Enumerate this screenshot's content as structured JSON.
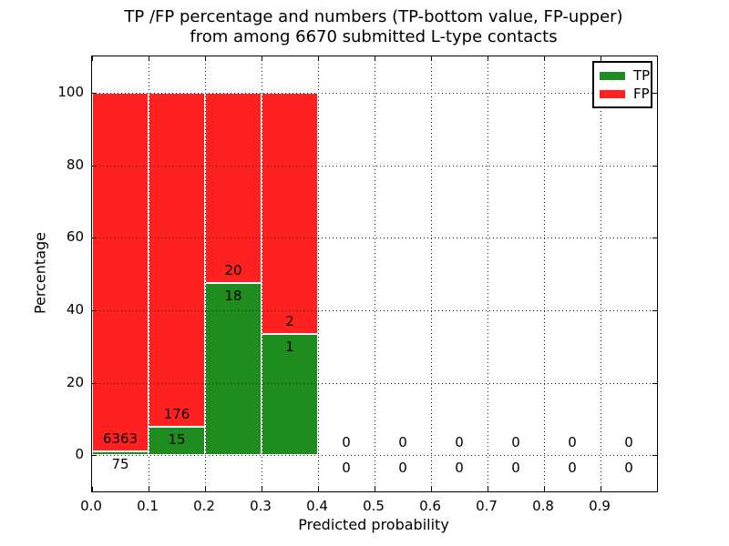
{
  "chart": {
    "title_line1": "TP /FP percentage and numbers (TP-bottom value, FP-upper)",
    "title_line2": "from among 6670 submitted L-type contacts",
    "xlabel": "Predicted probability",
    "ylabel": "Percentage"
  },
  "chart_data": {
    "type": "bar",
    "stacked": true,
    "title": "TP /FP percentage and numbers (TP-bottom value, FP-upper) from among 6670 submitted L-type contacts",
    "xlabel": "Predicted probability",
    "ylabel": "Percentage",
    "total_submitted": 6670,
    "xlim": [
      0.0,
      1.0
    ],
    "ylim": [
      -10,
      110
    ],
    "xtick_labels": [
      "0.0",
      "0.1",
      "0.2",
      "0.3",
      "0.4",
      "0.5",
      "0.6",
      "0.7",
      "0.8",
      "0.9"
    ],
    "ytick_values": [
      0,
      20,
      40,
      60,
      80,
      100
    ],
    "grid": "dotted",
    "colors": {
      "tp": "#1f8c1f",
      "fp": "#ff2020",
      "bar_edge": "#ffffff",
      "axes": "#000000"
    },
    "legend": {
      "position": "upper right",
      "entries": [
        {
          "label": "TP",
          "color": "#1f8c1f"
        },
        {
          "label": "FP",
          "color": "#ff2020"
        }
      ]
    },
    "bins": [
      {
        "range": [
          0.0,
          0.1
        ],
        "tp_count": 75,
        "fp_count": 6363,
        "tp_pct": 1.17,
        "fp_pct": 98.83
      },
      {
        "range": [
          0.1,
          0.2
        ],
        "tp_count": 15,
        "fp_count": 176,
        "tp_pct": 7.85,
        "fp_pct": 92.15
      },
      {
        "range": [
          0.2,
          0.3
        ],
        "tp_count": 18,
        "fp_count": 20,
        "tp_pct": 47.37,
        "fp_pct": 52.63
      },
      {
        "range": [
          0.3,
          0.4
        ],
        "tp_count": 1,
        "fp_count": 2,
        "tp_pct": 33.33,
        "fp_pct": 66.67
      },
      {
        "range": [
          0.4,
          0.5
        ],
        "tp_count": 0,
        "fp_count": 0,
        "tp_pct": 0,
        "fp_pct": 0
      },
      {
        "range": [
          0.5,
          0.6
        ],
        "tp_count": 0,
        "fp_count": 0,
        "tp_pct": 0,
        "fp_pct": 0
      },
      {
        "range": [
          0.6,
          0.7
        ],
        "tp_count": 0,
        "fp_count": 0,
        "tp_pct": 0,
        "fp_pct": 0
      },
      {
        "range": [
          0.7,
          0.8
        ],
        "tp_count": 0,
        "fp_count": 0,
        "tp_pct": 0,
        "fp_pct": 0
      },
      {
        "range": [
          0.8,
          0.9
        ],
        "tp_count": 0,
        "fp_count": 0,
        "tp_pct": 0,
        "fp_pct": 0
      },
      {
        "range": [
          0.9,
          1.0
        ],
        "tp_count": 0,
        "fp_count": 0,
        "tp_pct": 0,
        "fp_pct": 0
      }
    ]
  }
}
